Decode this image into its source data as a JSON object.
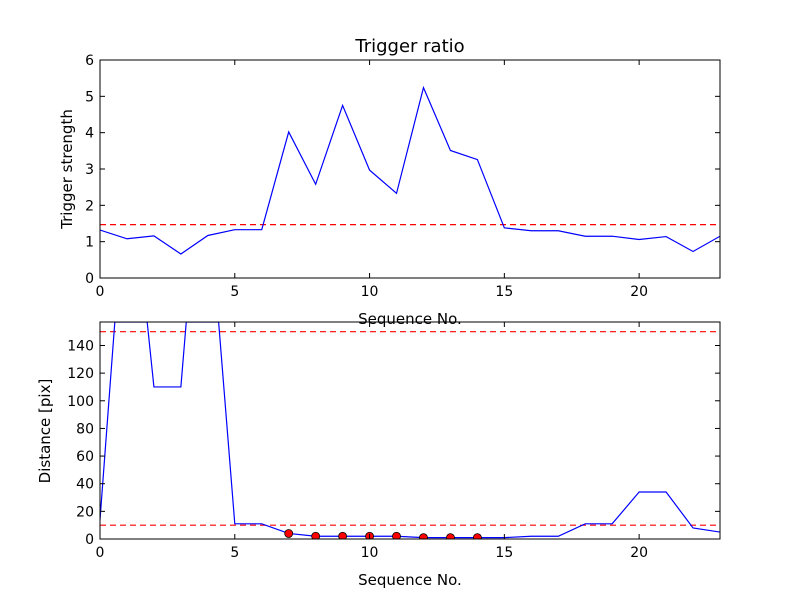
{
  "chart_data": [
    {
      "type": "line",
      "title": "Trigger ratio",
      "xlabel": "Sequence No.",
      "ylabel": "Trigger strength",
      "xlim": [
        0,
        23
      ],
      "ylim": [
        0,
        6
      ],
      "xticks": [
        "0",
        "5",
        "10",
        "15",
        "20"
      ],
      "yticks": [
        "0",
        "1",
        "2",
        "3",
        "4",
        "5",
        "6"
      ],
      "x": [
        0,
        1,
        2,
        3,
        4,
        5,
        6,
        7,
        8,
        9,
        10,
        11,
        12,
        13,
        14,
        15,
        16,
        17,
        18,
        19,
        20,
        21,
        22,
        23
      ],
      "series": [
        {
          "color": "#0000ff",
          "style": "solid",
          "values": [
            1.32,
            1.08,
            1.16,
            0.66,
            1.17,
            1.33,
            1.33,
            4.02,
            2.58,
            4.75,
            2.97,
            2.33,
            5.24,
            3.51,
            3.26,
            1.38,
            1.3,
            1.3,
            1.15,
            1.15,
            1.06,
            1.14,
            0.73,
            1.15
          ]
        }
      ],
      "reference_lines": [
        {
          "y": 1.47,
          "color": "#ff0000",
          "style": "dashed"
        }
      ]
    },
    {
      "type": "line",
      "xlabel": "Sequence No.",
      "ylabel": "Distance [pix]",
      "xlim": [
        0,
        23
      ],
      "ylim": [
        0,
        157
      ],
      "xticks": [
        "0",
        "5",
        "10",
        "15",
        "20"
      ],
      "yticks": [
        "0",
        "20",
        "40",
        "60",
        "80",
        "100",
        "120",
        "140"
      ],
      "series": [
        {
          "color": "#0000ff",
          "style": "solid",
          "points": [
            [
              0,
              14
            ],
            [
              0.55,
              157
            ],
            [
              1.75,
              157
            ],
            [
              2,
              110
            ],
            [
              3,
              110
            ],
            [
              3.2,
              157
            ],
            [
              4.4,
              157
            ],
            [
              5,
              11
            ],
            [
              6,
              11
            ],
            [
              7,
              4
            ],
            [
              8,
              2
            ],
            [
              9,
              2
            ],
            [
              10,
              2
            ],
            [
              11,
              2
            ],
            [
              12,
              1
            ],
            [
              13,
              1
            ],
            [
              14,
              1
            ],
            [
              15,
              1
            ],
            [
              16,
              2
            ],
            [
              17,
              2
            ],
            [
              18,
              11
            ],
            [
              19,
              11
            ],
            [
              20,
              34
            ],
            [
              21,
              34
            ],
            [
              22,
              8
            ],
            [
              23,
              5
            ]
          ]
        },
        {
          "color": "#ff0000",
          "style": "markers",
          "points": [
            [
              7,
              4
            ],
            [
              8,
              2
            ],
            [
              9,
              2
            ],
            [
              10,
              2
            ],
            [
              11,
              2
            ],
            [
              12,
              1
            ],
            [
              13,
              1
            ],
            [
              14,
              1
            ]
          ]
        }
      ],
      "reference_lines": [
        {
          "y": 150,
          "color": "#ff0000",
          "style": "dashed"
        },
        {
          "y": 10,
          "color": "#ff0000",
          "style": "dashed"
        }
      ]
    }
  ]
}
